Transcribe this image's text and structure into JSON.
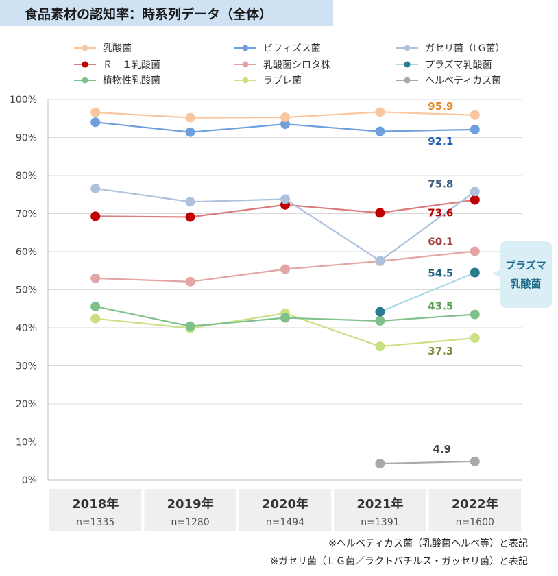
{
  "title": "食品素材の認知率：時系列データ（全体）",
  "callout": {
    "line1": "プラズマ",
    "line2": "乳酸菌",
    "bg": "#daeef6",
    "color": "#1f6e8c"
  },
  "footnotes": [
    "※ヘルベティカス菌（乳酸菌ヘルベ等）と表記",
    "※ガセリ菌（ＬＧ菌／ラクトバチルス・ガッセリ菌）と表記"
  ],
  "chart_data": {
    "type": "line",
    "categories": [
      "2018年",
      "2019年",
      "2020年",
      "2021年",
      "2022年"
    ],
    "sample_sizes": [
      "n=1335",
      "n=1280",
      "n=1494",
      "n=1391",
      "n=1600"
    ],
    "yticks": [
      "0%",
      "10%",
      "20%",
      "30%",
      "40%",
      "50%",
      "60%",
      "70%",
      "80%",
      "90%",
      "100%"
    ],
    "ylim": [
      0,
      100
    ],
    "legend_position": "top",
    "series": [
      {
        "name": "乳酸菌",
        "color": "#f9c79f",
        "label_color": "#e08a2b",
        "values": [
          96.6,
          95.2,
          95.3,
          96.7,
          95.9
        ],
        "end_label": "95.9"
      },
      {
        "name": "ビフィズス菌",
        "color": "#6f9fdc",
        "label_color": "#1f5fb4",
        "values": [
          94.0,
          91.4,
          93.5,
          91.6,
          92.1
        ],
        "end_label": "92.1"
      },
      {
        "name": "ガセリ菌（LG菌）",
        "color": "#aec2dd",
        "label_color": "#3e5a80",
        "values": [
          76.6,
          73.1,
          73.8,
          57.6,
          75.8
        ],
        "end_label": "75.8"
      },
      {
        "name": "Ｒ－１乳酸菌",
        "color": "#c00000",
        "line_color": "#d97b7b",
        "label_color": "#c00000",
        "values": [
          69.3,
          69.1,
          72.3,
          70.2,
          73.6
        ],
        "end_label": "73.6"
      },
      {
        "name": "乳酸菌シロタ株",
        "color": "#e3a4a4",
        "label_color": "#a33b3b",
        "values": [
          53.0,
          52.1,
          55.4,
          57.5,
          60.1
        ],
        "end_label": "60.1"
      },
      {
        "name": "プラズマ乳酸菌",
        "color": "#2b7b8e",
        "line_color": "#a9dbe6",
        "label_color": "#1f5f7a",
        "values": [
          null,
          null,
          null,
          44.2,
          54.5
        ],
        "end_label": "54.5"
      },
      {
        "name": "植物性乳酸菌",
        "color": "#7fc08b",
        "label_color": "#5a9e52",
        "values": [
          45.6,
          40.4,
          42.6,
          41.8,
          43.5
        ],
        "end_label": "43.5"
      },
      {
        "name": "ラブレ菌",
        "color": "#c9e083",
        "label_color": "#7d8a3a",
        "values": [
          42.4,
          39.9,
          43.8,
          35.1,
          37.3
        ],
        "end_label": "37.3"
      },
      {
        "name": "ヘルベティカス菌",
        "color": "#a9a9a9",
        "label_color": "#444444",
        "values": [
          null,
          null,
          null,
          4.3,
          4.9
        ],
        "end_label": "4.9"
      }
    ]
  }
}
